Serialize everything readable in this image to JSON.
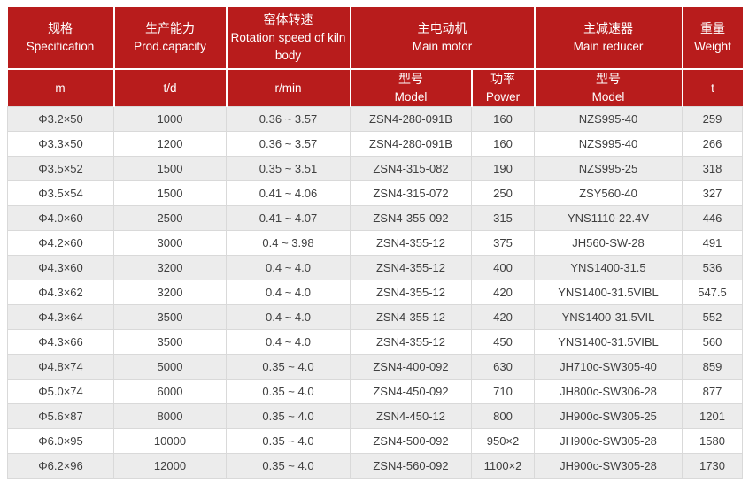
{
  "theme": {
    "header_bg": "#b81c1c",
    "header_text": "#ffffff",
    "row_alt_bg": "#ececec",
    "row_bg": "#ffffff",
    "border_color": "#d9d9d9",
    "cell_text": "#3f3f3f"
  },
  "table": {
    "header": {
      "spec": {
        "zh": "规格",
        "en": "Specification",
        "unit": "m"
      },
      "capacity": {
        "zh": "生产能力",
        "en": "Prod.capacity",
        "unit": "t/d"
      },
      "rotation": {
        "zh": "窑体转速",
        "en": "Rotation speed of kiln body",
        "unit": "r/min"
      },
      "motor": {
        "zh": "主电动机",
        "en": "Main motor"
      },
      "motor_model": {
        "zh": "型号",
        "en": "Model"
      },
      "motor_power": {
        "zh": "功率",
        "en": "Power"
      },
      "reducer": {
        "zh": "主减速器",
        "en": "Main reducer"
      },
      "reducer_model": {
        "zh": "型号",
        "en": "Model"
      },
      "weight": {
        "zh": "重量",
        "en": "Weight",
        "unit": "t"
      }
    },
    "rows": [
      [
        "Φ3.2×50",
        "1000",
        "0.36 ~ 3.57",
        "ZSN4-280-091B",
        "160",
        "NZS995-40",
        "259"
      ],
      [
        "Φ3.3×50",
        "1200",
        "0.36 ~ 3.57",
        "ZSN4-280-091B",
        "160",
        "NZS995-40",
        "266"
      ],
      [
        "Φ3.5×52",
        "1500",
        "0.35 ~ 3.51",
        "ZSN4-315-082",
        "190",
        "NZS995-25",
        "318"
      ],
      [
        "Φ3.5×54",
        "1500",
        "0.41 ~ 4.06",
        "ZSN4-315-072",
        "250",
        "ZSY560-40",
        "327"
      ],
      [
        "Φ4.0×60",
        "2500",
        "0.41 ~ 4.07",
        "ZSN4-355-092",
        "315",
        "YNS1110-22.4V",
        "446"
      ],
      [
        "Φ4.2×60",
        "3000",
        "0.4 ~ 3.98",
        "ZSN4-355-12",
        "375",
        "JH560-SW-28",
        "491"
      ],
      [
        "Φ4.3×60",
        "3200",
        "0.4 ~ 4.0",
        "ZSN4-355-12",
        "400",
        "YNS1400-31.5",
        "536"
      ],
      [
        "Φ4.3×62",
        "3200",
        "0.4 ~ 4.0",
        "ZSN4-355-12",
        "420",
        "YNS1400-31.5VIBL",
        "547.5"
      ],
      [
        "Φ4.3×64",
        "3500",
        "0.4 ~ 4.0",
        "ZSN4-355-12",
        "420",
        "YNS1400-31.5VIL",
        "552"
      ],
      [
        "Φ4.3×66",
        "3500",
        "0.4 ~ 4.0",
        "ZSN4-355-12",
        "450",
        "YNS1400-31.5VIBL",
        "560"
      ],
      [
        "Φ4.8×74",
        "5000",
        "0.35 ~ 4.0",
        "ZSN4-400-092",
        "630",
        "JH710c-SW305-40",
        "859"
      ],
      [
        "Φ5.0×74",
        "6000",
        "0.35 ~ 4.0",
        "ZSN4-450-092",
        "710",
        "JH800c-SW306-28",
        "877"
      ],
      [
        "Φ5.6×87",
        "8000",
        "0.35 ~ 4.0",
        "ZSN4-450-12",
        "800",
        "JH900c-SW305-25",
        "1201"
      ],
      [
        "Φ6.0×95",
        "10000",
        "0.35 ~ 4.0",
        "ZSN4-500-092",
        "950×2",
        "JH900c-SW305-28",
        "1580"
      ],
      [
        "Φ6.2×96",
        "12000",
        "0.35 ~ 4.0",
        "ZSN4-560-092",
        "1100×2",
        "JH900c-SW305-28",
        "1730"
      ]
    ]
  }
}
